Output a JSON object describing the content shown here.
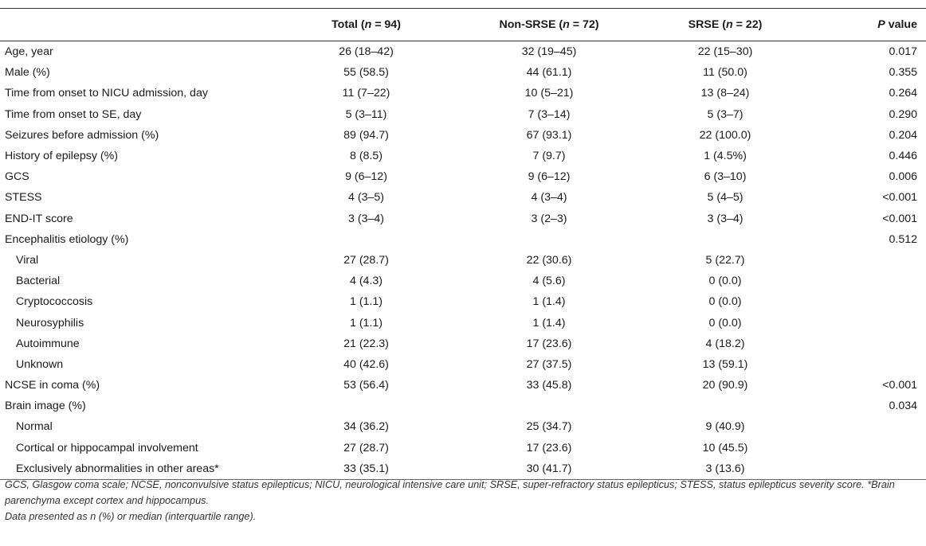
{
  "table": {
    "headers": {
      "col0": "",
      "total": {
        "pre": "Total (",
        "n": "n",
        "post": " = 94)"
      },
      "non_srse": {
        "pre": "Non-SRSE (",
        "n": "n",
        "post": " = 72)"
      },
      "srse": {
        "pre": "SRSE (",
        "n": "n",
        "post": " = 22)"
      },
      "pvalue": {
        "p": "P",
        "post": " value"
      }
    },
    "rows": [
      {
        "label": "Age, year",
        "indent": false,
        "total": "26 (18–42)",
        "non_srse": "32 (19–45)",
        "srse": "22 (15–30)",
        "p": "0.017"
      },
      {
        "label": "Male (%)",
        "indent": false,
        "total": "55 (58.5)",
        "non_srse": "44 (61.1)",
        "srse": "11 (50.0)",
        "p": "0.355"
      },
      {
        "label": "Time from onset to NICU admission, day",
        "indent": false,
        "total": "11 (7–22)",
        "non_srse": "10 (5–21)",
        "srse": "13 (8–24)",
        "p": "0.264"
      },
      {
        "label": "Time from onset to SE, day",
        "indent": false,
        "total": "5 (3–11)",
        "non_srse": "7 (3–14)",
        "srse": "5 (3–7)",
        "p": "0.290"
      },
      {
        "label": "Seizures before admission (%)",
        "indent": false,
        "total": "89 (94.7)",
        "non_srse": "67 (93.1)",
        "srse": "22 (100.0)",
        "p": "0.204"
      },
      {
        "label": "History of epilepsy (%)",
        "indent": false,
        "total": "8 (8.5)",
        "non_srse": "7 (9.7)",
        "srse": "1 (4.5%)",
        "p": "0.446"
      },
      {
        "label": "GCS",
        "indent": false,
        "total": "9 (6–12)",
        "non_srse": "9 (6–12)",
        "srse": "6 (3–10)",
        "p": "0.006"
      },
      {
        "label": "STESS",
        "indent": false,
        "total": "4 (3–5)",
        "non_srse": "4 (3–4)",
        "srse": "5 (4–5)",
        "p": "<0.001"
      },
      {
        "label": "END-IT score",
        "indent": false,
        "total": "3 (3–4)",
        "non_srse": "3 (2–3)",
        "srse": "3 (3–4)",
        "p": "<0.001"
      },
      {
        "label": "Encephalitis etiology (%)",
        "indent": false,
        "total": "",
        "non_srse": "",
        "srse": "",
        "p": "0.512"
      },
      {
        "label": "Viral",
        "indent": true,
        "total": "27 (28.7)",
        "non_srse": "22 (30.6)",
        "srse": "5 (22.7)",
        "p": ""
      },
      {
        "label": "Bacterial",
        "indent": true,
        "total": "4 (4.3)",
        "non_srse": "4 (5.6)",
        "srse": "0 (0.0)",
        "p": ""
      },
      {
        "label": "Cryptococcosis",
        "indent": true,
        "total": "1 (1.1)",
        "non_srse": "1 (1.4)",
        "srse": "0 (0.0)",
        "p": ""
      },
      {
        "label": "Neurosyphilis",
        "indent": true,
        "total": "1 (1.1)",
        "non_srse": "1 (1.4)",
        "srse": "0 (0.0)",
        "p": ""
      },
      {
        "label": "Autoimmune",
        "indent": true,
        "total": "21 (22.3)",
        "non_srse": "17 (23.6)",
        "srse": "4 (18.2)",
        "p": ""
      },
      {
        "label": "Unknown",
        "indent": true,
        "total": "40 (42.6)",
        "non_srse": "27 (37.5)",
        "srse": "13 (59.1)",
        "p": ""
      },
      {
        "label": "NCSE in coma (%)",
        "indent": false,
        "total": "53 (56.4)",
        "non_srse": "33 (45.8)",
        "srse": "20 (90.9)",
        "p": "<0.001"
      },
      {
        "label": "Brain image (%)",
        "indent": false,
        "total": "",
        "non_srse": "",
        "srse": "",
        "p": "0.034"
      },
      {
        "label": "Normal",
        "indent": true,
        "total": "34 (36.2)",
        "non_srse": "25 (34.7)",
        "srse": "9 (40.9)",
        "p": ""
      },
      {
        "label": "Cortical or hippocampal involvement",
        "indent": true,
        "total": "27 (28.7)",
        "non_srse": "17 (23.6)",
        "srse": "10 (45.5)",
        "p": ""
      },
      {
        "label": "Exclusively abnormalities in other areas*",
        "indent": true,
        "total": "33 (35.1)",
        "non_srse": "30 (41.7)",
        "srse": "3 (13.6)",
        "p": ""
      }
    ]
  },
  "footnotes": {
    "abbreviations": "GCS, Glasgow coma scale; NCSE, nonconvulsive status epilepticus; NICU, neurological intensive care unit; SRSE, super-refractory status epilepticus; STESS, status epilepticus severity score. *Brain parenchyma except cortex and hippocampus.",
    "data_note": "Data presented as n (%) or median (interquartile range)."
  }
}
